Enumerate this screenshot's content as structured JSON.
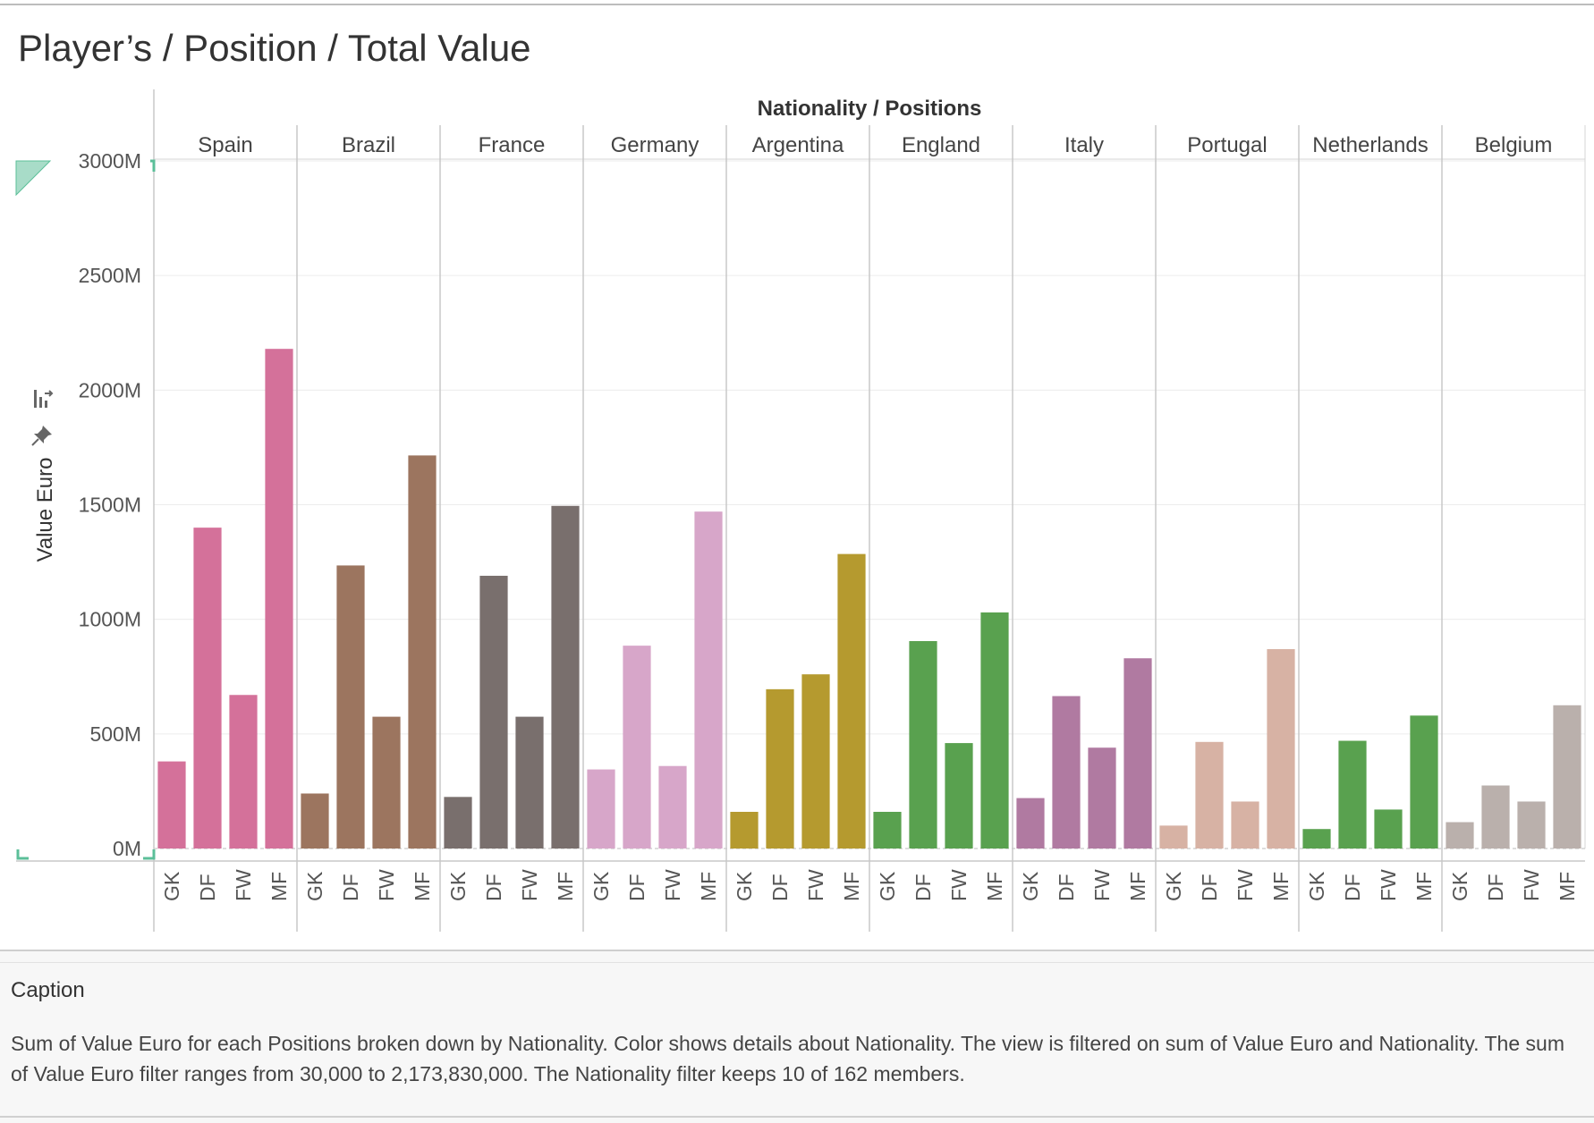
{
  "title": "Player’s / Position / Total Value",
  "caption": {
    "heading": "Caption",
    "text": "Sum of Value Euro for each Positions broken down by Nationality.  Color shows details about Nationality. The view is filtered on sum of Value Euro and Nationality. The sum of Value Euro filter ranges from 30,000 to 2,173,830,000. The Nationality filter keeps 10 of 162 members."
  },
  "icons": [
    "sort-icon",
    "pin-icon"
  ],
  "chart_data": {
    "type": "bar",
    "column_header": "Nationality / Positions",
    "ylabel": "Value Euro",
    "ylim": [
      0,
      3000
    ],
    "y_unit": "M",
    "y_ticks": [
      "0M",
      "500M",
      "1000M",
      "1500M",
      "2000M",
      "2500M",
      "3000M"
    ],
    "y_tick_values": [
      0,
      500,
      1000,
      1500,
      2000,
      2500,
      3000
    ],
    "categories": [
      "GK",
      "DF",
      "FW",
      "MF"
    ],
    "grid": true,
    "series": [
      {
        "name": "Spain",
        "color": "#d4719a",
        "values": [
          380,
          1400,
          670,
          2180
        ]
      },
      {
        "name": "Brazil",
        "color": "#9c755f",
        "values": [
          240,
          1235,
          575,
          1715
        ]
      },
      {
        "name": "France",
        "color": "#796f6d",
        "values": [
          225,
          1190,
          575,
          1495
        ]
      },
      {
        "name": "Germany",
        "color": "#d7a6c9",
        "values": [
          345,
          885,
          360,
          1470
        ]
      },
      {
        "name": "Argentina",
        "color": "#b59a2f",
        "values": [
          160,
          695,
          760,
          1285
        ]
      },
      {
        "name": "England",
        "color": "#59a14f",
        "values": [
          160,
          905,
          460,
          1030
        ]
      },
      {
        "name": "Italy",
        "color": "#b07aa1",
        "values": [
          220,
          665,
          440,
          830
        ]
      },
      {
        "name": "Portugal",
        "color": "#d7b2a4",
        "values": [
          100,
          465,
          205,
          870
        ]
      },
      {
        "name": "Netherlands",
        "color": "#59a14f",
        "values": [
          85,
          470,
          170,
          580
        ]
      },
      {
        "name": "Belgium",
        "color": "#bab0ac",
        "values": [
          115,
          275,
          205,
          625
        ]
      }
    ]
  }
}
